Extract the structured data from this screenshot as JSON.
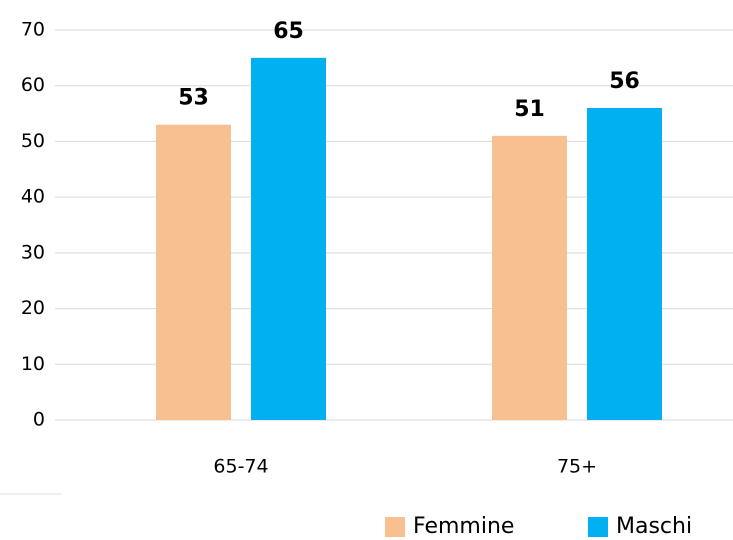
{
  "chart_data": {
    "type": "bar",
    "categories": [
      "65-74",
      "75+"
    ],
    "series": [
      {
        "name": "Femmine",
        "color": "#f8c090",
        "values": [
          53,
          51
        ]
      },
      {
        "name": "Maschi",
        "color": "#00b0f0",
        "values": [
          65,
          56
        ]
      }
    ],
    "ylim": [
      0,
      70
    ],
    "yticks": [
      0,
      10,
      20,
      30,
      40,
      50,
      60,
      70
    ],
    "grid": true,
    "legend": "bottom-right"
  }
}
